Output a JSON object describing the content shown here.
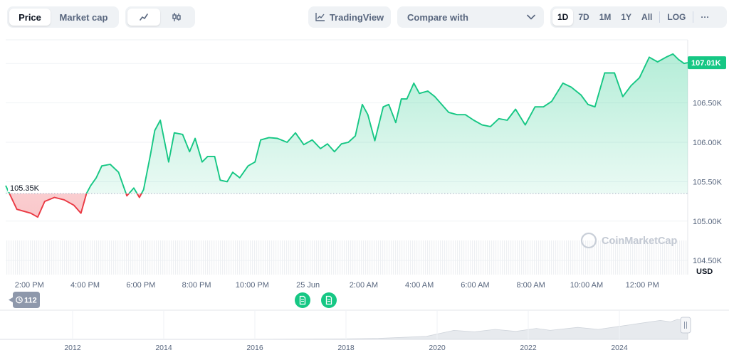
{
  "toolbar": {
    "price_tab": "Price",
    "market_cap_tab": "Market cap",
    "tradingview_label": "TradingView",
    "compare_label": "Compare with",
    "ranges": [
      "1D",
      "7D",
      "1M",
      "1Y",
      "All"
    ],
    "active_range": "1D",
    "log_label": "LOG",
    "more_label": "···",
    "line_icon": "line-chart-icon",
    "candle_icon": "candlestick-icon"
  },
  "chart_data": {
    "type": "area",
    "currency": "USD",
    "baseline": 105.35,
    "baseline_label": "105.35K",
    "current_label": "107.01K",
    "watermark": "CoinMarketCap",
    "event_count": "112",
    "y_ticks": [
      {
        "label": "107.00K",
        "value": 107.0
      },
      {
        "label": "106.50K",
        "value": 106.5
      },
      {
        "label": "106.00K",
        "value": 106.0
      },
      {
        "label": "105.50K",
        "value": 105.5
      },
      {
        "label": "105.00K",
        "value": 105.0
      },
      {
        "label": "104.50K",
        "value": 104.5
      }
    ],
    "ylim": [
      104.33,
      107.3
    ],
    "x_ticks": [
      "2:00 PM",
      "4:00 PM",
      "6:00 PM",
      "8:00 PM",
      "10:00 PM",
      "25 Jun",
      "2:00 AM",
      "4:00 AM",
      "6:00 AM",
      "8:00 AM",
      "10:00 AM",
      "12:00 PM"
    ],
    "x_tick_hours": [
      14,
      16,
      18,
      20,
      22,
      24,
      26,
      28,
      30,
      32,
      34,
      36
    ],
    "xlim": [
      13.15,
      37.63
    ],
    "x_unit": "hour",
    "x": [
      13.15,
      13.55,
      14.05,
      14.3,
      14.55,
      14.9,
      15.25,
      15.6,
      15.85,
      16.05,
      16.2,
      16.4,
      16.6,
      16.9,
      17.2,
      17.5,
      17.75,
      17.95,
      18.1,
      18.35,
      18.5,
      18.7,
      19.0,
      19.2,
      19.5,
      19.75,
      19.95,
      20.2,
      20.4,
      20.65,
      20.85,
      21.1,
      21.3,
      21.55,
      21.85,
      22.1,
      22.3,
      22.6,
      22.9,
      23.25,
      23.55,
      23.85,
      24.15,
      24.45,
      24.7,
      24.95,
      25.2,
      25.45,
      25.7,
      25.95,
      26.15,
      26.4,
      26.7,
      26.9,
      27.15,
      27.35,
      27.55,
      27.8,
      28.0,
      28.3,
      28.55,
      28.8,
      29.05,
      29.35,
      29.65,
      29.95,
      30.25,
      30.55,
      30.85,
      31.15,
      31.45,
      31.8,
      32.15,
      32.45,
      32.75,
      33.15,
      33.45,
      33.8,
      34.05,
      34.3,
      34.65,
      35.0,
      35.3,
      35.6,
      35.9,
      36.25,
      36.55,
      36.85,
      37.1,
      37.3,
      37.5,
      37.63
    ],
    "values": [
      105.45,
      105.15,
      105.1,
      105.05,
      105.25,
      105.3,
      105.27,
      105.2,
      105.1,
      105.35,
      105.45,
      105.55,
      105.7,
      105.72,
      105.62,
      105.32,
      105.42,
      105.3,
      105.4,
      105.85,
      106.15,
      106.28,
      105.75,
      106.12,
      106.1,
      105.88,
      106.05,
      105.75,
      105.82,
      105.82,
      105.52,
      105.5,
      105.62,
      105.55,
      105.7,
      105.75,
      106.03,
      106.06,
      106.05,
      106.0,
      106.12,
      105.97,
      106.03,
      105.92,
      105.98,
      105.88,
      105.98,
      106.0,
      106.08,
      106.48,
      106.35,
      106.02,
      106.45,
      106.48,
      106.25,
      106.55,
      106.55,
      106.75,
      106.62,
      106.65,
      106.58,
      106.48,
      106.38,
      106.35,
      106.35,
      106.28,
      106.22,
      106.2,
      106.3,
      106.28,
      106.42,
      106.22,
      106.45,
      106.45,
      106.52,
      106.75,
      106.7,
      106.6,
      106.48,
      106.45,
      106.88,
      106.88,
      106.58,
      106.72,
      106.82,
      107.08,
      107.02,
      107.08,
      107.12,
      107.05,
      107.0,
      107.01
    ],
    "navigator_ticks": [
      "2012",
      "2014",
      "2016",
      "2018",
      "2020",
      "2022",
      "2024"
    ]
  }
}
